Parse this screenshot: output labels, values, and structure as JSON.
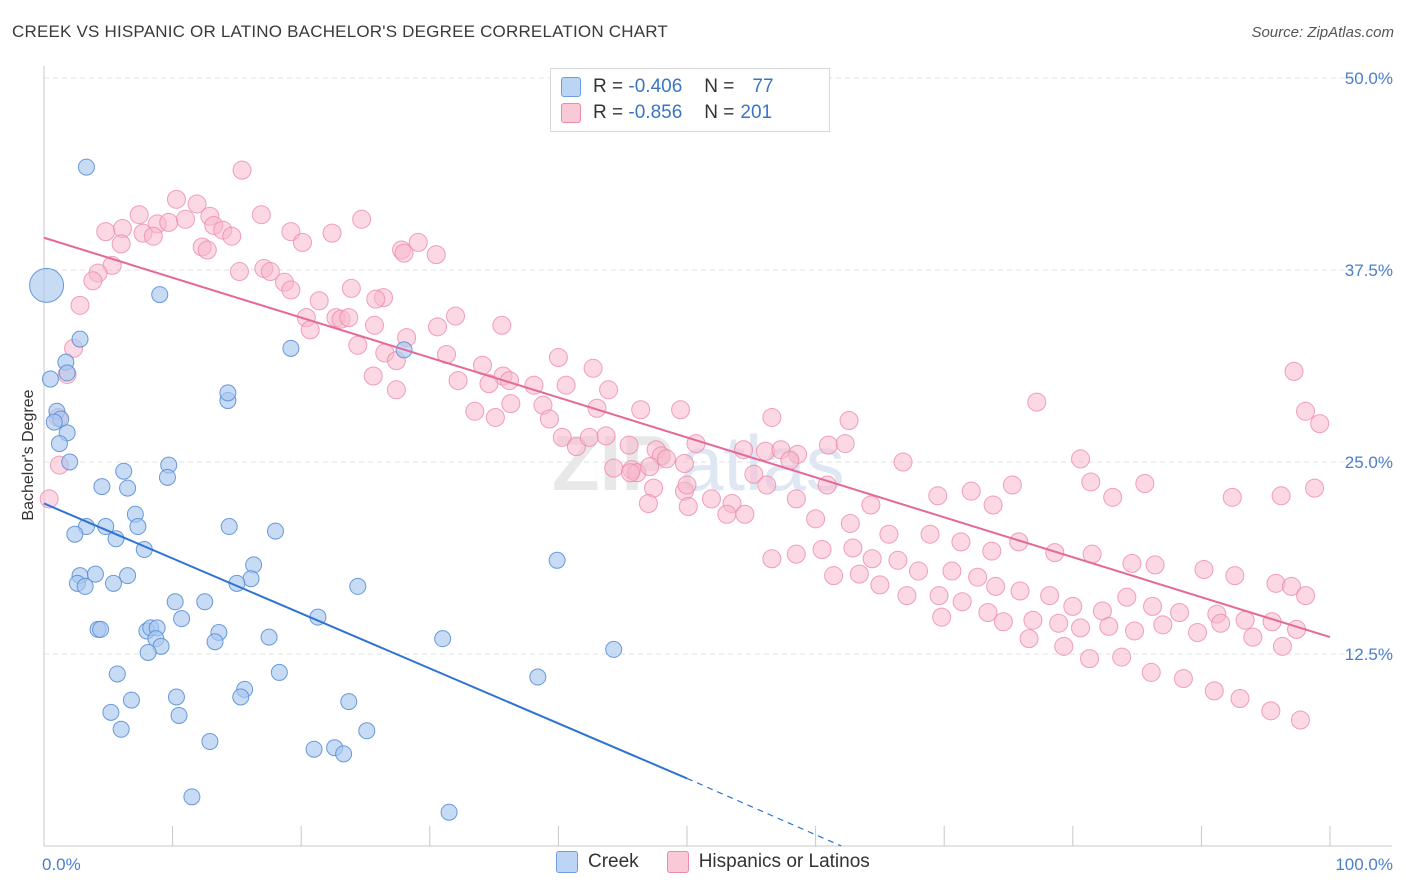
{
  "title": "CREEK VS HISPANIC OR LATINO BACHELOR'S DEGREE CORRELATION CHART",
  "source": "Source: ZipAtlas.com",
  "legend": {
    "rows": [
      {
        "r_label": "R =",
        "r_value": "-0.406",
        "n_label": "N =",
        "n_value": "77",
        "color": "#a9c8f0"
      },
      {
        "r_label": "R =",
        "r_value": "-0.856",
        "n_label": "N =",
        "n_value": "201",
        "color": "#f7b8cc"
      }
    ]
  },
  "bottom_legend": [
    "Creek",
    "Hispanics or Latinos"
  ],
  "colors": {
    "creek_fill": "#a9c8f0",
    "creek_stroke": "#5b8fd6",
    "creek_line": "#2f74d0",
    "hisp_fill": "#f7b8cc",
    "hisp_stroke": "#ec8aaa",
    "hisp_line": "#e4699a",
    "tick_text": "#4a7fd0",
    "grid": "#e2e2e2"
  },
  "chart_data": {
    "type": "scatter",
    "title": "CREEK VS HISPANIC OR LATINO BACHELOR'S DEGREE CORRELATION CHART",
    "xlabel": "",
    "ylabel": "Bachelor's Degree",
    "xlim": [
      0,
      100
    ],
    "ylim": [
      0,
      50
    ],
    "y_ticks": [
      12.5,
      25.0,
      37.5,
      50.0
    ],
    "y_tick_labels": [
      "12.5%",
      "25.0%",
      "37.5%",
      "50.0%"
    ],
    "x_tick_labels": [
      "0.0%",
      "100.0%"
    ],
    "grid": "horizontal dashed",
    "legend_position": "top-center",
    "series": [
      {
        "name": "Creek",
        "r": -0.406,
        "n": 77,
        "trend": {
          "x0": 0,
          "y0": 22.3,
          "x1": 50,
          "y1": 4.4,
          "dashed_to_x": 62,
          "dashed_to_y": 0
        },
        "points": [
          [
            0.2,
            36.5,
            "L"
          ],
          [
            3.3,
            44.2
          ],
          [
            9.0,
            35.9
          ],
          [
            2.8,
            33.0
          ],
          [
            1.7,
            31.5
          ],
          [
            19.2,
            32.4
          ],
          [
            28.0,
            32.3
          ],
          [
            0.5,
            30.4
          ],
          [
            1.8,
            30.8
          ],
          [
            14.3,
            29.0
          ],
          [
            14.3,
            29.5
          ],
          [
            1.0,
            28.3
          ],
          [
            1.3,
            27.8
          ],
          [
            0.8,
            27.6
          ],
          [
            1.8,
            26.9
          ],
          [
            1.2,
            26.2
          ],
          [
            2.0,
            25.0
          ],
          [
            9.7,
            24.8
          ],
          [
            6.2,
            24.4
          ],
          [
            9.6,
            24.0
          ],
          [
            4.5,
            23.4
          ],
          [
            6.5,
            23.3
          ],
          [
            7.1,
            21.6
          ],
          [
            3.3,
            20.8
          ],
          [
            4.8,
            20.8
          ],
          [
            14.4,
            20.8
          ],
          [
            7.3,
            20.8
          ],
          [
            18.0,
            20.5
          ],
          [
            2.4,
            20.3
          ],
          [
            5.6,
            20.0
          ],
          [
            7.8,
            19.3
          ],
          [
            16.3,
            18.3
          ],
          [
            2.8,
            17.6
          ],
          [
            4.0,
            17.7
          ],
          [
            6.5,
            17.6
          ],
          [
            16.1,
            17.4
          ],
          [
            15.0,
            17.1
          ],
          [
            2.6,
            17.1
          ],
          [
            3.2,
            16.9
          ],
          [
            5.4,
            17.1
          ],
          [
            24.4,
            16.9
          ],
          [
            39.9,
            18.6
          ],
          [
            10.2,
            15.9
          ],
          [
            12.5,
            15.9
          ],
          [
            10.7,
            14.8
          ],
          [
            21.3,
            14.9
          ],
          [
            4.2,
            14.1
          ],
          [
            4.4,
            14.1
          ],
          [
            8.0,
            14.0
          ],
          [
            8.3,
            14.2
          ],
          [
            8.8,
            14.2
          ],
          [
            13.6,
            13.9
          ],
          [
            8.7,
            13.5
          ],
          [
            17.5,
            13.6
          ],
          [
            13.3,
            13.3
          ],
          [
            31.0,
            13.5
          ],
          [
            9.1,
            13.0
          ],
          [
            8.1,
            12.6
          ],
          [
            44.3,
            12.8
          ],
          [
            18.3,
            11.3
          ],
          [
            5.7,
            11.2
          ],
          [
            38.4,
            11.0
          ],
          [
            15.6,
            10.2
          ],
          [
            6.8,
            9.5
          ],
          [
            10.3,
            9.7
          ],
          [
            15.3,
            9.7
          ],
          [
            23.7,
            9.4
          ],
          [
            5.2,
            8.7
          ],
          [
            10.5,
            8.5
          ],
          [
            6.0,
            7.6
          ],
          [
            25.1,
            7.5
          ],
          [
            12.9,
            6.8
          ],
          [
            21.0,
            6.3
          ],
          [
            22.6,
            6.4
          ],
          [
            23.3,
            6.0
          ],
          [
            11.5,
            3.2
          ],
          [
            31.5,
            2.2
          ]
        ]
      },
      {
        "name": "Hispanics or Latinos",
        "r": -0.856,
        "n": 201,
        "trend": {
          "x0": 0,
          "y0": 39.6,
          "x1": 100,
          "y1": 13.6
        },
        "points": [
          [
            15.4,
            44.0
          ],
          [
            10.3,
            42.1
          ],
          [
            11.9,
            41.8
          ],
          [
            7.4,
            41.1
          ],
          [
            12.9,
            41.0
          ],
          [
            16.9,
            41.1
          ],
          [
            24.7,
            40.8
          ],
          [
            6.1,
            40.2
          ],
          [
            8.8,
            40.5
          ],
          [
            9.7,
            40.6
          ],
          [
            11.0,
            40.8
          ],
          [
            13.2,
            40.4
          ],
          [
            4.8,
            40.0
          ],
          [
            7.7,
            39.9
          ],
          [
            13.9,
            40.1
          ],
          [
            19.2,
            40.0
          ],
          [
            8.5,
            39.7
          ],
          [
            14.6,
            39.7
          ],
          [
            20.1,
            39.3
          ],
          [
            22.4,
            39.9
          ],
          [
            29.1,
            39.3
          ],
          [
            6.0,
            39.2
          ],
          [
            12.3,
            39.0
          ],
          [
            12.7,
            38.8
          ],
          [
            27.8,
            38.8
          ],
          [
            28.0,
            38.6
          ],
          [
            30.5,
            38.5
          ],
          [
            5.3,
            37.8
          ],
          [
            4.2,
            37.3
          ],
          [
            15.2,
            37.4
          ],
          [
            17.1,
            37.6
          ],
          [
            17.6,
            37.4
          ],
          [
            3.8,
            36.8
          ],
          [
            18.7,
            36.7
          ],
          [
            23.9,
            36.3
          ],
          [
            26.4,
            35.7
          ],
          [
            19.2,
            36.2
          ],
          [
            2.8,
            35.2
          ],
          [
            21.4,
            35.5
          ],
          [
            20.4,
            34.4
          ],
          [
            22.7,
            34.4
          ],
          [
            25.8,
            35.6
          ],
          [
            23.1,
            34.3
          ],
          [
            23.7,
            34.4
          ],
          [
            32.0,
            34.5
          ],
          [
            20.7,
            33.6
          ],
          [
            25.7,
            33.9
          ],
          [
            30.6,
            33.8
          ],
          [
            35.6,
            33.9
          ],
          [
            28.2,
            33.1
          ],
          [
            24.4,
            32.6
          ],
          [
            2.3,
            32.4
          ],
          [
            26.5,
            32.1
          ],
          [
            31.3,
            32.0
          ],
          [
            40.0,
            31.8
          ],
          [
            27.4,
            31.6
          ],
          [
            34.1,
            31.3
          ],
          [
            42.7,
            31.1
          ],
          [
            1.8,
            30.7
          ],
          [
            25.6,
            30.6
          ],
          [
            35.7,
            30.6
          ],
          [
            32.2,
            30.3
          ],
          [
            34.6,
            30.1
          ],
          [
            27.4,
            29.7
          ],
          [
            36.2,
            30.3
          ],
          [
            38.1,
            30.0
          ],
          [
            40.6,
            30.0
          ],
          [
            43.9,
            29.7
          ],
          [
            36.3,
            28.8
          ],
          [
            38.8,
            28.7
          ],
          [
            33.5,
            28.3
          ],
          [
            35.1,
            27.9
          ],
          [
            39.3,
            27.8
          ],
          [
            43.0,
            28.5
          ],
          [
            46.4,
            28.4
          ],
          [
            49.5,
            28.4
          ],
          [
            56.6,
            27.9
          ],
          [
            62.6,
            27.7
          ],
          [
            77.2,
            28.9
          ],
          [
            98.1,
            28.3
          ],
          [
            99.2,
            27.5
          ],
          [
            1.1,
            27.9
          ],
          [
            40.3,
            26.6
          ],
          [
            41.4,
            26.0
          ],
          [
            42.4,
            26.6
          ],
          [
            43.7,
            26.7
          ],
          [
            45.5,
            26.1
          ],
          [
            47.6,
            25.8
          ],
          [
            48.0,
            25.4
          ],
          [
            50.7,
            26.2
          ],
          [
            54.4,
            25.8
          ],
          [
            56.1,
            25.7
          ],
          [
            57.3,
            25.8
          ],
          [
            58.6,
            25.5
          ],
          [
            61.0,
            26.1
          ],
          [
            62.3,
            26.2
          ],
          [
            44.3,
            24.6
          ],
          [
            45.7,
            24.5
          ],
          [
            46.1,
            24.3
          ],
          [
            47.1,
            24.7
          ],
          [
            48.4,
            25.2
          ],
          [
            49.8,
            24.9
          ],
          [
            55.2,
            24.2
          ],
          [
            58.0,
            25.1
          ],
          [
            66.8,
            25.0
          ],
          [
            80.6,
            25.2
          ],
          [
            97.2,
            30.9
          ],
          [
            1.2,
            24.8
          ],
          [
            45.6,
            24.3
          ],
          [
            47.4,
            23.3
          ],
          [
            49.8,
            23.1
          ],
          [
            50.0,
            23.5
          ],
          [
            51.9,
            22.6
          ],
          [
            53.5,
            22.3
          ],
          [
            56.2,
            23.5
          ],
          [
            58.5,
            22.6
          ],
          [
            60.9,
            23.5
          ],
          [
            64.3,
            22.2
          ],
          [
            69.5,
            22.8
          ],
          [
            72.1,
            23.1
          ],
          [
            75.3,
            23.5
          ],
          [
            73.8,
            22.2
          ],
          [
            81.4,
            23.7
          ],
          [
            83.1,
            22.7
          ],
          [
            85.6,
            23.6
          ],
          [
            92.4,
            22.7
          ],
          [
            96.2,
            22.8
          ],
          [
            98.8,
            23.3
          ],
          [
            0.4,
            22.6
          ],
          [
            47.0,
            22.3
          ],
          [
            50.1,
            22.1
          ],
          [
            53.1,
            21.6
          ],
          [
            54.5,
            21.6
          ],
          [
            60.0,
            21.3
          ],
          [
            62.7,
            21.0
          ],
          [
            65.7,
            20.3
          ],
          [
            68.9,
            20.3
          ],
          [
            71.3,
            19.8
          ],
          [
            73.7,
            19.2
          ],
          [
            75.8,
            19.8
          ],
          [
            78.6,
            19.1
          ],
          [
            81.5,
            19.0
          ],
          [
            84.6,
            18.4
          ],
          [
            86.4,
            18.3
          ],
          [
            90.2,
            18.0
          ],
          [
            92.6,
            17.6
          ],
          [
            95.8,
            17.1
          ],
          [
            97.0,
            16.9
          ],
          [
            98.1,
            16.3
          ],
          [
            56.6,
            18.7
          ],
          [
            58.5,
            19.0
          ],
          [
            60.5,
            19.3
          ],
          [
            62.9,
            19.4
          ],
          [
            64.4,
            18.7
          ],
          [
            66.4,
            18.6
          ],
          [
            68.0,
            17.9
          ],
          [
            70.6,
            17.9
          ],
          [
            72.6,
            17.5
          ],
          [
            74.0,
            16.9
          ],
          [
            75.9,
            16.6
          ],
          [
            78.2,
            16.3
          ],
          [
            80.0,
            15.6
          ],
          [
            82.3,
            15.3
          ],
          [
            84.2,
            16.2
          ],
          [
            86.2,
            15.6
          ],
          [
            88.3,
            15.2
          ],
          [
            91.2,
            15.1
          ],
          [
            93.4,
            14.7
          ],
          [
            95.5,
            14.6
          ],
          [
            97.4,
            14.1
          ],
          [
            61.4,
            17.6
          ],
          [
            63.4,
            17.7
          ],
          [
            65.0,
            17.0
          ],
          [
            67.1,
            16.3
          ],
          [
            69.6,
            16.3
          ],
          [
            71.4,
            15.9
          ],
          [
            73.4,
            15.2
          ],
          [
            76.9,
            14.7
          ],
          [
            78.9,
            14.5
          ],
          [
            80.6,
            14.2
          ],
          [
            82.8,
            14.3
          ],
          [
            84.8,
            14.0
          ],
          [
            87.0,
            14.4
          ],
          [
            89.7,
            13.9
          ],
          [
            91.5,
            14.5
          ],
          [
            94.0,
            13.6
          ],
          [
            96.3,
            13.0
          ],
          [
            69.8,
            14.9
          ],
          [
            74.6,
            14.6
          ],
          [
            76.6,
            13.5
          ],
          [
            79.3,
            13.0
          ],
          [
            81.3,
            12.2
          ],
          [
            83.8,
            12.3
          ],
          [
            86.1,
            11.3
          ],
          [
            88.6,
            10.9
          ],
          [
            91.0,
            10.1
          ],
          [
            93.0,
            9.6
          ],
          [
            95.4,
            8.8
          ],
          [
            97.7,
            8.2
          ]
        ]
      }
    ]
  }
}
